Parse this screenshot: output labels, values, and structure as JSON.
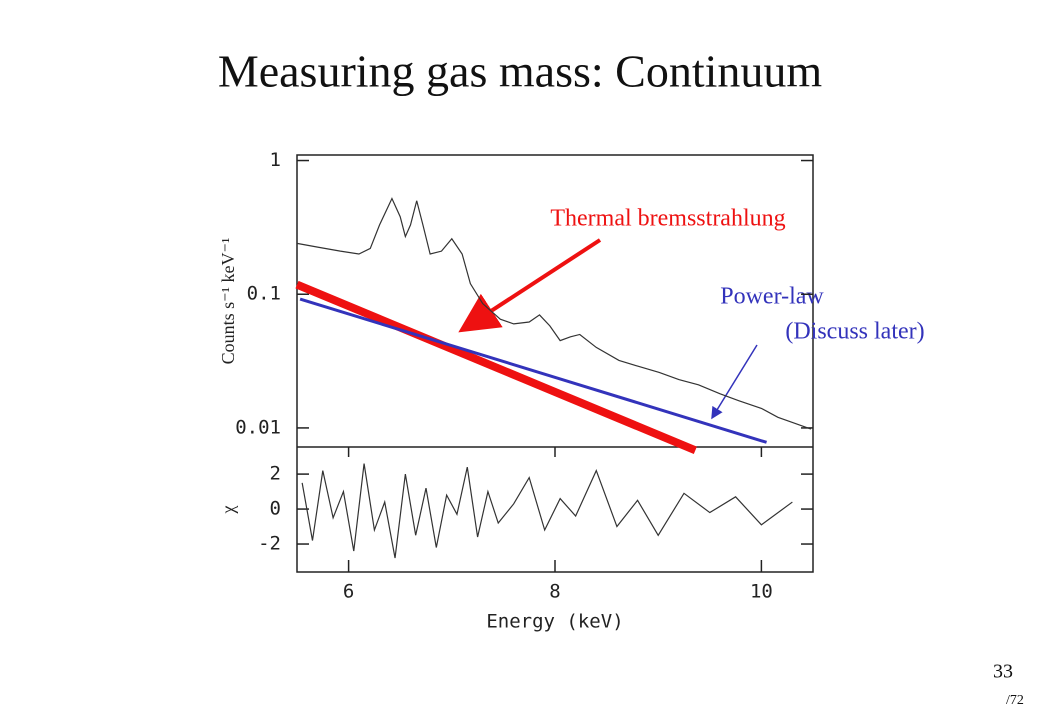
{
  "title": "Measuring gas mass: Continuum",
  "page_number": "33",
  "page_total": "/72",
  "annotation": "(Discuss later)",
  "chart_data": [
    {
      "type": "line",
      "ylabel": "Counts s⁻¹ keV⁻¹",
      "yscale": "log",
      "xlim": [
        5.5,
        10.5
      ],
      "ylim": [
        0.0072,
        1.1
      ],
      "yticks": [
        1,
        0.1,
        0.01
      ],
      "series": [
        {
          "color": "#333333",
          "x": [
            5.5,
            5.7,
            5.92,
            6.1,
            6.21,
            6.3,
            6.42,
            6.5,
            6.55,
            6.6,
            6.66,
            6.72,
            6.79,
            6.9,
            7.0,
            7.1,
            7.18,
            7.3,
            7.47,
            7.6,
            7.75,
            7.85,
            7.95,
            8.05,
            8.15,
            8.24,
            8.4,
            8.62,
            8.8,
            9.01,
            9.2,
            9.39,
            9.6,
            9.78,
            10.0,
            10.16,
            10.3,
            10.48
          ],
          "values": [
            0.24,
            0.225,
            0.21,
            0.2,
            0.22,
            0.33,
            0.52,
            0.38,
            0.27,
            0.33,
            0.5,
            0.33,
            0.2,
            0.21,
            0.26,
            0.2,
            0.12,
            0.085,
            0.065,
            0.06,
            0.062,
            0.07,
            0.058,
            0.045,
            0.048,
            0.05,
            0.04,
            0.032,
            0.029,
            0.026,
            0.023,
            0.021,
            0.018,
            0.016,
            0.014,
            0.012,
            0.011,
            0.0098
          ]
        },
        {
          "name": "Thermal bremsstrahlung",
          "color": "#ee1111",
          "x": [
            5.5,
            9.36
          ],
          "values": [
            0.118,
            0.0068
          ]
        },
        {
          "name": "Power-law",
          "color": "#3333bb",
          "x": [
            5.53,
            10.05
          ],
          "values": [
            0.092,
            0.0078
          ]
        }
      ]
    },
    {
      "type": "line",
      "ylabel": "χ",
      "xlabel": "Energy (keV)",
      "xlim": [
        5.5,
        10.5
      ],
      "ylim": [
        -3.6,
        3.55
      ],
      "xticks": [
        6,
        8,
        10
      ],
      "yticks": [
        2,
        0,
        -2
      ],
      "series": [
        {
          "color": "#333333",
          "x": [
            5.55,
            5.65,
            5.75,
            5.85,
            5.95,
            6.05,
            6.15,
            6.25,
            6.35,
            6.45,
            6.55,
            6.65,
            6.75,
            6.85,
            6.95,
            7.05,
            7.15,
            7.25,
            7.35,
            7.45,
            7.6,
            7.75,
            7.9,
            8.05,
            8.2,
            8.4,
            8.6,
            8.8,
            9.0,
            9.25,
            9.5,
            9.75,
            10.0,
            10.3
          ],
          "values": [
            1.5,
            -1.8,
            2.2,
            -0.5,
            1.0,
            -2.4,
            2.6,
            -1.2,
            0.4,
            -2.8,
            2.0,
            -1.5,
            1.2,
            -2.2,
            0.8,
            -0.3,
            2.4,
            -1.6,
            1.0,
            -0.8,
            0.3,
            1.8,
            -1.2,
            0.6,
            -0.4,
            2.2,
            -1.0,
            0.5,
            -1.5,
            0.9,
            -0.2,
            0.7,
            -0.9,
            0.4
          ]
        }
      ]
    }
  ]
}
